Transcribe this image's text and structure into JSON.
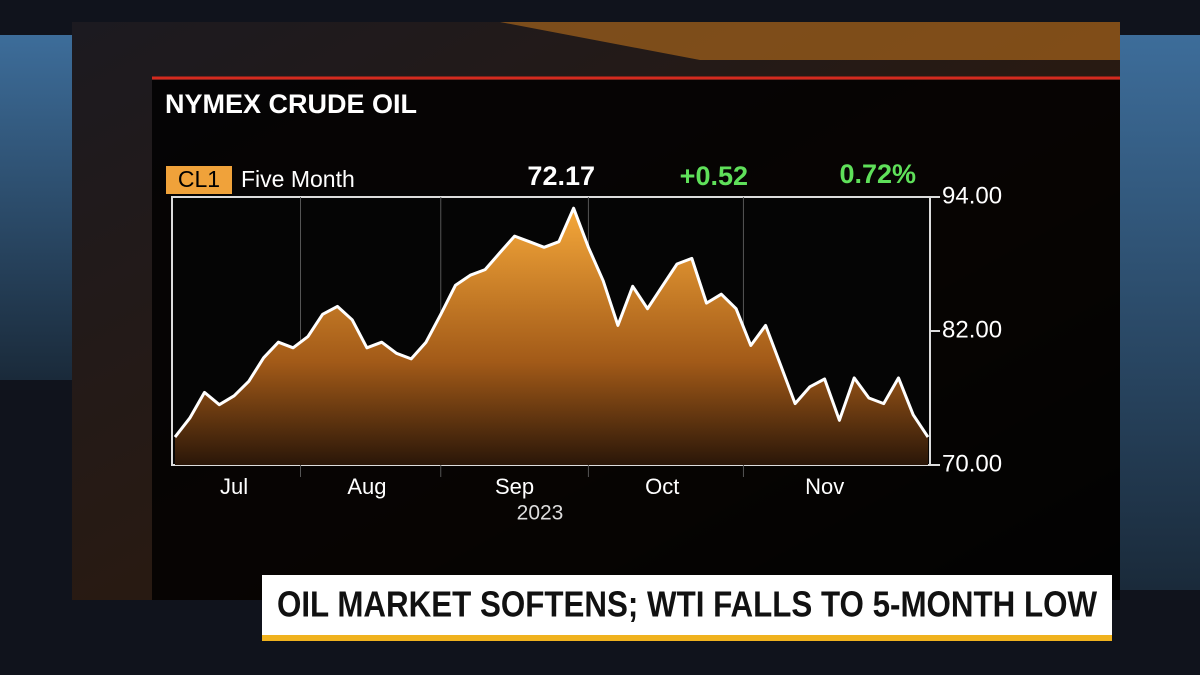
{
  "chart_data": {
    "type": "area",
    "title": "NYMEX CRUDE OIL",
    "ticker": "CL1",
    "period": "Five Month",
    "last": "72.17",
    "change": "+0.52",
    "change_pct": "0.72%",
    "x_sublabel": "2023",
    "categories": [
      null,
      null,
      null,
      null,
      "Jul",
      null,
      null,
      null,
      null,
      null,
      null,
      null,
      null,
      "Aug",
      null,
      null,
      null,
      null,
      null,
      null,
      null,
      null,
      null,
      "Sep",
      null,
      null,
      null,
      null,
      null,
      null,
      null,
      null,
      null,
      "Oct",
      null,
      null,
      null,
      null,
      null,
      null,
      null,
      null,
      null,
      null,
      "Nov",
      null,
      null,
      null,
      null,
      null,
      null,
      null
    ],
    "values": [
      72.5,
      74.2,
      76.5,
      75.4,
      76.2,
      77.5,
      79.6,
      81.0,
      80.5,
      81.5,
      83.5,
      84.2,
      83.0,
      80.5,
      81.0,
      80.0,
      79.5,
      81.0,
      83.5,
      86.1,
      87.0,
      87.5,
      89.0,
      90.5,
      90.0,
      89.5,
      90.0,
      93.0,
      89.5,
      86.5,
      82.5,
      86.0,
      84.0,
      86.0,
      88.0,
      88.5,
      84.5,
      85.3,
      84.0,
      80.7,
      82.5,
      79.0,
      75.5,
      77.0,
      77.7,
      74.0,
      77.8,
      76.0,
      75.5,
      77.8,
      74.5,
      72.5
    ],
    "color": "#f09a2a",
    "line_color": "#ffffff",
    "ylim": [
      70,
      94
    ],
    "yticks": [
      {
        "value": 70,
        "label": "70.00"
      },
      {
        "value": 82,
        "label": "82.00"
      },
      {
        "value": 94,
        "label": "94.00"
      }
    ],
    "headline": "OIL MARKET SOFTENS; WTI FALLS TO 5-MONTH LOW"
  }
}
